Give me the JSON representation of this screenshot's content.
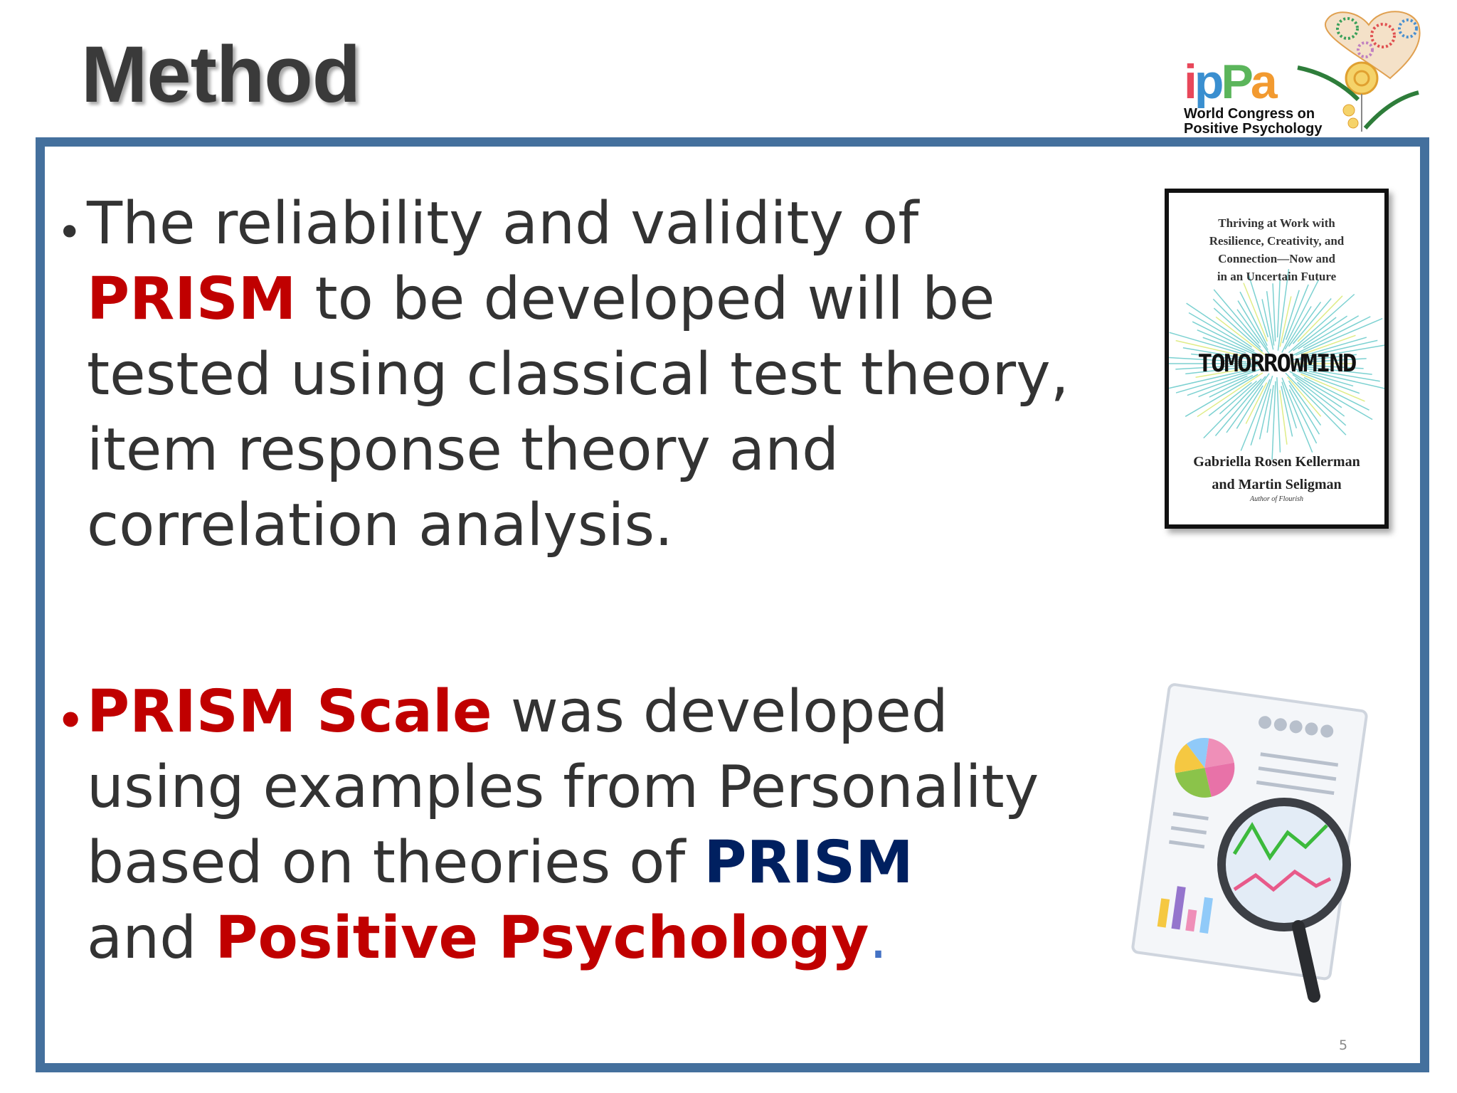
{
  "slide": {
    "title": "Method",
    "page_number": "5",
    "frame_color": "#44709d"
  },
  "logo": {
    "brand": "ippa",
    "line1": "World Congress on",
    "line2": "Positive Psychology"
  },
  "bullet1": {
    "l1": "The reliability and validity of",
    "l2_red": "PRISM",
    "l2": " to be developed will be",
    "l3": "tested using classical test theory,",
    "l4": "item response theory and",
    "l5": "correlation analysis."
  },
  "bullet2": {
    "l1_red": "PRISM Scale",
    "l1": " was developed",
    "l2": "using examples from Personality",
    "l3": "based on theories of ",
    "l3_navy": "PRISM",
    "l4": "and ",
    "l4_red": "Positive Psychology",
    "l4_end": "."
  },
  "book": {
    "subtitle_1": "Thriving at Work with",
    "subtitle_2": "Resilience, Creativity, and",
    "subtitle_3": "Connection—Now and",
    "subtitle_4": "in an Uncertain Future",
    "title": "TOMORROWMIND",
    "author_1": "Gabriella Rosen Kellerman",
    "author_2": "and Martin Seligman",
    "author_note": "Author of Flourish"
  },
  "colors": {
    "red": "#c00000",
    "navy": "#002060",
    "text": "#333333"
  },
  "illustration": {
    "icon": "report-magnifier-icon"
  }
}
